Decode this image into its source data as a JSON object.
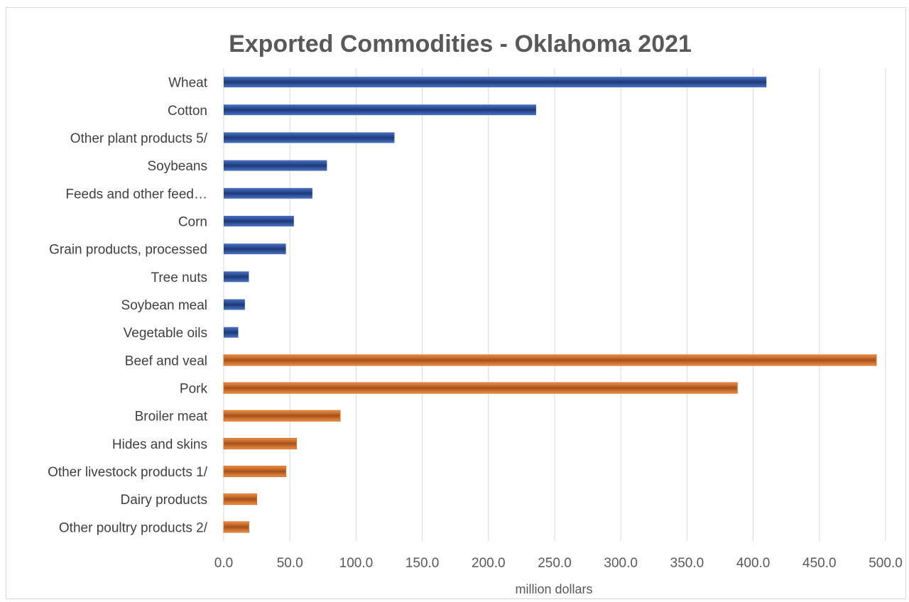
{
  "chart_data": {
    "type": "bar",
    "orientation": "horizontal",
    "title": "Exported Commodities - Oklahoma 2021",
    "xlabel": "million dollars",
    "ylabel": "",
    "xlim": [
      0,
      500
    ],
    "x_ticks": [
      "0.0",
      "50.0",
      "100.0",
      "150.0",
      "200.0",
      "250.0",
      "300.0",
      "350.0",
      "400.0",
      "450.0",
      "500.0"
    ],
    "grid": "vertical",
    "legend": "none",
    "colors": {
      "plant": "#2f52a0",
      "livestock": "#d86f2a"
    },
    "categories": [
      "Wheat",
      "Cotton",
      "Other plant products 5/",
      "Soybeans",
      "Feeds and other feed…",
      "Corn",
      "Grain products, processed",
      "Tree nuts",
      "Soybean meal",
      "Vegetable oils",
      "Beef and veal",
      "Pork",
      "Broiler meat",
      "Hides and skins",
      "Other livestock products 1/",
      "Dairy products",
      "Other poultry products 2/"
    ],
    "values": [
      410,
      236,
      129,
      78,
      67,
      53,
      47,
      19,
      16,
      11,
      493,
      388,
      88,
      55,
      47,
      25,
      19
    ],
    "groups": [
      "plant",
      "plant",
      "plant",
      "plant",
      "plant",
      "plant",
      "plant",
      "plant",
      "plant",
      "plant",
      "livestock",
      "livestock",
      "livestock",
      "livestock",
      "livestock",
      "livestock",
      "livestock"
    ]
  }
}
